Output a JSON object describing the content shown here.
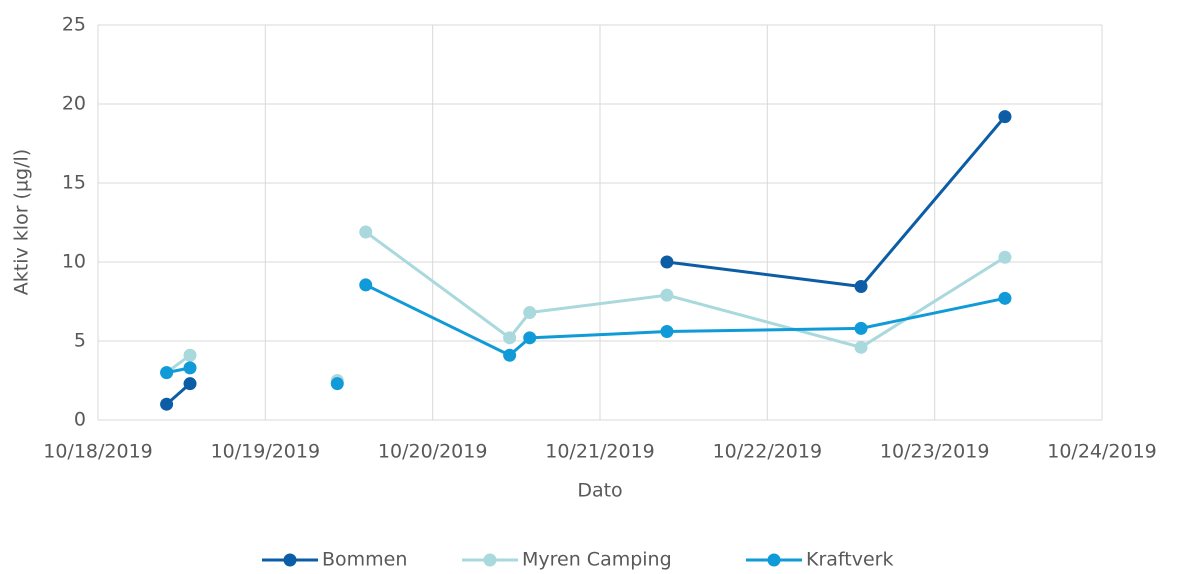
{
  "chart_data": {
    "type": "line",
    "x_label": "Dato",
    "y_label": "Aktiv klor (µg/l)",
    "xlim": [
      43756,
      43762
    ],
    "xticks": [
      {
        "value": 43756,
        "label": "10/18/2019"
      },
      {
        "value": 43757,
        "label": "10/19/2019"
      },
      {
        "value": 43758,
        "label": "10/20/2019"
      },
      {
        "value": 43759,
        "label": "10/21/2019"
      },
      {
        "value": 43760,
        "label": "10/22/2019"
      },
      {
        "value": 43761,
        "label": "10/23/2019"
      },
      {
        "value": 43762,
        "label": "10/24/2019"
      }
    ],
    "ylim": [
      0,
      25
    ],
    "yticks": [
      0,
      5,
      10,
      15,
      20,
      25
    ],
    "grid": true,
    "legend": "bottom",
    "series": [
      {
        "name": "Bommen",
        "color": "#0c5da5",
        "x": [
          43756.41,
          43756.55,
          null,
          43759.4,
          43760.56,
          43761.42
        ],
        "values": [
          1.0,
          2.3,
          null,
          10.0,
          8.45,
          19.2
        ]
      },
      {
        "name": "Myren Camping",
        "color": "#a9d9dd",
        "x": [
          43756.41,
          43756.55,
          null,
          43757.43,
          null,
          43757.6,
          43758.46,
          43758.58,
          43759.4,
          43760.56,
          43761.42
        ],
        "values": [
          3.0,
          4.1,
          null,
          2.5,
          null,
          11.9,
          5.2,
          6.8,
          7.9,
          4.6,
          10.3
        ]
      },
      {
        "name": "Kraftverk",
        "color": "#109bd8",
        "x": [
          43756.41,
          43756.55,
          null,
          43757.43,
          null,
          43757.6,
          43758.46,
          43758.58,
          43759.4,
          43760.56,
          43761.42
        ],
        "values": [
          3.0,
          3.3,
          null,
          2.3,
          null,
          8.55,
          4.1,
          5.2,
          5.6,
          5.8,
          7.7
        ]
      }
    ]
  }
}
